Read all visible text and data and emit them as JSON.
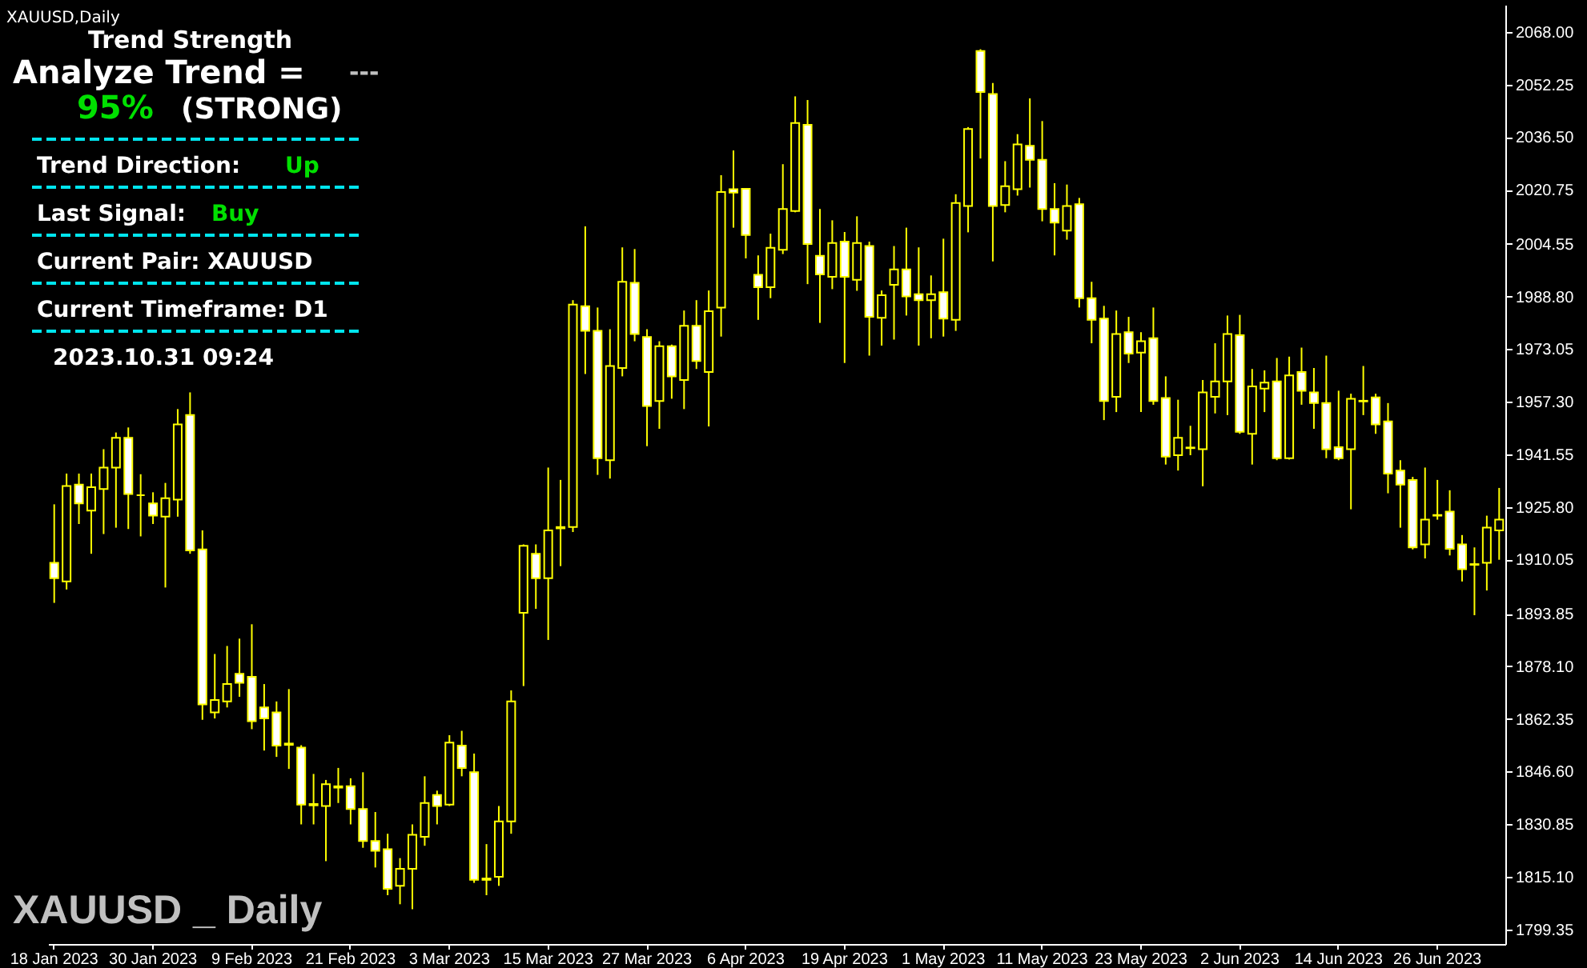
{
  "chart_data": {
    "type": "candlestick",
    "title": "XAUUSD,Daily",
    "categories": [
      "18 Jan 2023",
      null,
      null,
      null,
      null,
      null,
      null,
      null,
      "30 Jan 2023",
      null,
      null,
      null,
      null,
      null,
      null,
      null,
      "9 Feb 2023",
      null,
      null,
      null,
      null,
      null,
      null,
      null,
      "21 Feb 2023",
      null,
      null,
      null,
      null,
      null,
      null,
      null,
      "3 Mar 2023",
      null,
      null,
      null,
      null,
      null,
      null,
      null,
      "15 Mar 2023",
      null,
      null,
      null,
      null,
      null,
      null,
      null,
      "27 Mar 2023",
      null,
      null,
      null,
      null,
      null,
      null,
      null,
      "6 Apr 2023",
      null,
      null,
      null,
      null,
      null,
      null,
      null,
      "19 Apr 2023",
      null,
      null,
      null,
      null,
      null,
      null,
      null,
      "1 May 2023",
      null,
      null,
      null,
      null,
      null,
      null,
      null,
      "11 May 2023",
      null,
      null,
      null,
      null,
      null,
      null,
      null,
      "23 May 2023",
      null,
      null,
      null,
      null,
      null,
      null,
      null,
      "2 Jun 2023",
      null,
      null,
      null,
      null,
      null,
      null,
      null,
      "14 Jun 2023",
      null,
      null,
      null,
      null,
      null,
      null,
      null,
      "26 Jun 2023",
      null,
      null,
      null,
      null,
      null
    ],
    "ohlc": [
      [
        1909.1,
        1926.6,
        1897.1,
        1904.5
      ],
      [
        1903.5,
        1935.8,
        1901.1,
        1932.1
      ],
      [
        1932.5,
        1935.8,
        1920.7,
        1926.9
      ],
      [
        1924.7,
        1935.8,
        1911.8,
        1931.7
      ],
      [
        1931.2,
        1943.1,
        1917.7,
        1937.6
      ],
      [
        1937.6,
        1948.1,
        1919.6,
        1946.5
      ],
      [
        1946.5,
        1949.6,
        1919.2,
        1929.7
      ],
      [
        1929.3,
        1935.6,
        1917.0,
        1929.3
      ],
      [
        1926.9,
        1930.2,
        1920.7,
        1923.2
      ],
      [
        1922.9,
        1933.0,
        1901.7,
        1928.4
      ],
      [
        1928.0,
        1955.1,
        1922.9,
        1950.5
      ],
      [
        1953.3,
        1960.1,
        1911.8,
        1912.8
      ],
      [
        1913.1,
        1918.8,
        1862.1,
        1866.7
      ],
      [
        1864.3,
        1881.8,
        1862.5,
        1868.0
      ],
      [
        1867.6,
        1884.2,
        1865.8,
        1872.8
      ],
      [
        1875.9,
        1886.4,
        1869.0,
        1873.2
      ],
      [
        1875.0,
        1890.7,
        1859.3,
        1861.7
      ],
      [
        1865.8,
        1872.8,
        1852.9,
        1862.5
      ],
      [
        1864.3,
        1867.6,
        1851.0,
        1854.4
      ],
      [
        1855.0,
        1871.3,
        1847.4,
        1854.6
      ],
      [
        1853.8,
        1854.5,
        1830.8,
        1836.7
      ],
      [
        1836.9,
        1845.9,
        1830.8,
        1836.5
      ],
      [
        1836.3,
        1844.1,
        1819.8,
        1842.8
      ],
      [
        1841.8,
        1847.7,
        1837.2,
        1842.2
      ],
      [
        1842.2,
        1844.6,
        1830.8,
        1835.4
      ],
      [
        1835.4,
        1846.4,
        1823.8,
        1825.8
      ],
      [
        1825.8,
        1834.5,
        1817.9,
        1822.9
      ],
      [
        1823.4,
        1828.0,
        1809.6,
        1811.5
      ],
      [
        1812.4,
        1820.7,
        1806.9,
        1817.5
      ],
      [
        1817.5,
        1830.8,
        1805.4,
        1827.7
      ],
      [
        1827.1,
        1845.2,
        1824.4,
        1837.2
      ],
      [
        1839.6,
        1840.9,
        1830.8,
        1836.3
      ],
      [
        1836.7,
        1857.5,
        1836.3,
        1855.3
      ],
      [
        1854.4,
        1858.8,
        1845.2,
        1847.7
      ],
      [
        1846.4,
        1852.0,
        1813.3,
        1814.2
      ],
      [
        1814.6,
        1824.9,
        1809.6,
        1814.2
      ],
      [
        1815.1,
        1836.3,
        1812.4,
        1831.7
      ],
      [
        1831.7,
        1870.9,
        1828.0,
        1867.6
      ],
      [
        1894.1,
        1914.6,
        1872.2,
        1914.2
      ],
      [
        1911.8,
        1914.6,
        1895.3,
        1904.5
      ],
      [
        1904.5,
        1937.6,
        1886.0,
        1918.8
      ],
      [
        1919.8,
        1933.9,
        1908.1,
        1919.4
      ],
      [
        1919.8,
        1987.7,
        1918.3,
        1986.4
      ],
      [
        1985.9,
        2009.8,
        1965.6,
        1978.5
      ],
      [
        1978.5,
        1985.5,
        1935.4,
        1940.4
      ],
      [
        1939.8,
        1979.0,
        1934.3,
        1968.0
      ],
      [
        1967.4,
        2003.5,
        1964.9,
        1993.2
      ],
      [
        1992.9,
        2003.0,
        1975.4,
        1977.6
      ],
      [
        1976.7,
        1979.0,
        1944.0,
        1956.0
      ],
      [
        1957.5,
        1975.4,
        1949.2,
        1973.9
      ],
      [
        1973.9,
        1974.4,
        1958.2,
        1964.9
      ],
      [
        1963.8,
        1984.6,
        1955.1,
        1980.0
      ],
      [
        1980.0,
        1987.7,
        1967.1,
        1969.5
      ],
      [
        1966.2,
        1990.6,
        1949.9,
        1984.4
      ],
      [
        1985.5,
        2025.1,
        1976.8,
        2020.1
      ],
      [
        2020.9,
        2032.5,
        2009.4,
        2019.9
      ],
      [
        2021.0,
        2021.1,
        2000.2,
        2007.2
      ],
      [
        1995.3,
        2001.1,
        1981.8,
        1991.6
      ],
      [
        1991.6,
        2007.6,
        1988.3,
        2003.4
      ],
      [
        2002.8,
        2028.4,
        2001.5,
        2015.0
      ],
      [
        2014.4,
        2048.7,
        2014.0,
        2040.7
      ],
      [
        2040.2,
        2047.6,
        1992.5,
        2004.5
      ],
      [
        2001.0,
        2015.0,
        1980.9,
        1995.4
      ],
      [
        1994.7,
        2011.6,
        1991.0,
        2004.8
      ],
      [
        2005.2,
        2008.1,
        1968.9,
        1994.7
      ],
      [
        1993.8,
        2012.8,
        1990.5,
        2004.8
      ],
      [
        2003.9,
        2005.2,
        1971.1,
        1982.7
      ],
      [
        1982.4,
        1990.6,
        1974.1,
        1989.2
      ],
      [
        1992.3,
        2003.9,
        1975.9,
        1996.9
      ],
      [
        1996.9,
        2009.4,
        1983.1,
        1988.8
      ],
      [
        1989.5,
        2003.5,
        1974.1,
        1987.7
      ],
      [
        1987.7,
        1995.1,
        1976.3,
        1989.5
      ],
      [
        1990.1,
        2006.1,
        1976.8,
        1982.2
      ],
      [
        1981.8,
        2019.4,
        1978.5,
        2016.8
      ],
      [
        2015.9,
        2039.5,
        2008.0,
        2038.9
      ],
      [
        2062.3,
        2062.8,
        2030.1,
        2050.0
      ],
      [
        2049.4,
        2052.7,
        1999.3,
        2015.9
      ],
      [
        2016.2,
        2029.3,
        2014.0,
        2021.8
      ],
      [
        2020.9,
        2037.4,
        2019.0,
        2034.3
      ],
      [
        2033.9,
        2048.1,
        2021.4,
        2029.7
      ],
      [
        2029.7,
        2041.3,
        2011.3,
        2015.0
      ],
      [
        2015.0,
        2022.7,
        2001.1,
        2010.9
      ],
      [
        2008.5,
        2022.3,
        2005.8,
        2015.9
      ],
      [
        2016.4,
        2018.3,
        1985.5,
        1988.3
      ],
      [
        1988.3,
        1993.2,
        1974.8,
        1981.8
      ],
      [
        1982.2,
        1986.0,
        1951.8,
        1957.5
      ],
      [
        1958.8,
        1984.6,
        1954.2,
        1977.6
      ],
      [
        1978.1,
        1982.7,
        1968.9,
        1971.7
      ],
      [
        1972.0,
        1978.1,
        1954.2,
        1975.4
      ],
      [
        1976.3,
        1985.5,
        1956.4,
        1957.5
      ],
      [
        1958.4,
        1964.9,
        1938.5,
        1940.9
      ],
      [
        1941.3,
        1957.9,
        1936.7,
        1946.5
      ],
      [
        1943.6,
        1950.1,
        1941.3,
        1943.4
      ],
      [
        1943.1,
        1963.8,
        1932.0,
        1960.1
      ],
      [
        1958.8,
        1974.8,
        1953.8,
        1963.4
      ],
      [
        1963.4,
        1983.1,
        1953.3,
        1977.6
      ],
      [
        1977.2,
        1983.3,
        1947.7,
        1948.3
      ],
      [
        1947.7,
        1967.1,
        1938.5,
        1961.9
      ],
      [
        1961.2,
        1966.7,
        1954.2,
        1963.0
      ],
      [
        1963.4,
        1970.4,
        1939.8,
        1940.4
      ],
      [
        1940.4,
        1970.8,
        1940.0,
        1965.2
      ],
      [
        1966.2,
        1973.5,
        1956.4,
        1960.6
      ],
      [
        1960.1,
        1967.4,
        1949.2,
        1956.9
      ],
      [
        1956.9,
        1971.1,
        1940.4,
        1943.1
      ],
      [
        1943.7,
        1960.6,
        1939.8,
        1940.4
      ],
      [
        1943.1,
        1959.7,
        1925.1,
        1958.2
      ],
      [
        1957.6,
        1968.0,
        1953.3,
        1957.4
      ],
      [
        1958.6,
        1959.7,
        1947.7,
        1950.5
      ],
      [
        1951.4,
        1956.9,
        1929.9,
        1935.8
      ],
      [
        1936.7,
        1939.8,
        1919.6,
        1932.5
      ],
      [
        1933.9,
        1934.8,
        1913.1,
        1913.7
      ],
      [
        1914.6,
        1937.6,
        1910.4,
        1922.0
      ],
      [
        1923.2,
        1933.9,
        1922.0,
        1923.4
      ],
      [
        1924.4,
        1930.8,
        1911.3,
        1913.3
      ],
      [
        1914.6,
        1917.4,
        1903.5,
        1907.2
      ],
      [
        1908.7,
        1913.7,
        1893.4,
        1908.5
      ],
      [
        1909.1,
        1923.2,
        1900.8,
        1919.6
      ],
      [
        1918.8,
        1931.5,
        1910.0,
        1922.0
      ]
    ],
    "ylim": [
      1795.0,
      2076.1
    ],
    "yticks": [
      {
        "value": 2068.0,
        "label": "2068.00"
      },
      {
        "value": 2052.25,
        "label": "2052.25"
      },
      {
        "value": 2036.5,
        "label": "2036.50"
      },
      {
        "value": 2020.75,
        "label": "2020.75"
      },
      {
        "value": 2004.55,
        "label": "2004.55"
      },
      {
        "value": 1988.8,
        "label": "1988.80"
      },
      {
        "value": 1973.05,
        "label": "1973.05"
      },
      {
        "value": 1957.3,
        "label": "1957.30"
      },
      {
        "value": 1941.55,
        "label": "1941.55"
      },
      {
        "value": 1925.8,
        "label": "1925.80"
      },
      {
        "value": 1910.05,
        "label": "1910.05"
      },
      {
        "value": 1893.85,
        "label": "1893.85"
      },
      {
        "value": 1878.1,
        "label": "1878.10"
      },
      {
        "value": 1862.35,
        "label": "1862.35"
      },
      {
        "value": 1846.6,
        "label": "1846.60"
      },
      {
        "value": 1830.85,
        "label": "1830.85"
      },
      {
        "value": 1815.1,
        "label": "1815.10"
      },
      {
        "value": 1799.35,
        "label": "1799.35"
      }
    ],
    "annotations": [
      "Trend Strength",
      "Analyze Trend =",
      "---",
      "95%",
      "(STRONG)",
      "Trend Direction:",
      "Up",
      "Last Signal:",
      "Buy",
      "Current Pair: XAUUSD",
      "Current Timeframe: D1",
      "2023.10.31 09:24",
      "XAUUSD _ Daily"
    ]
  }
}
